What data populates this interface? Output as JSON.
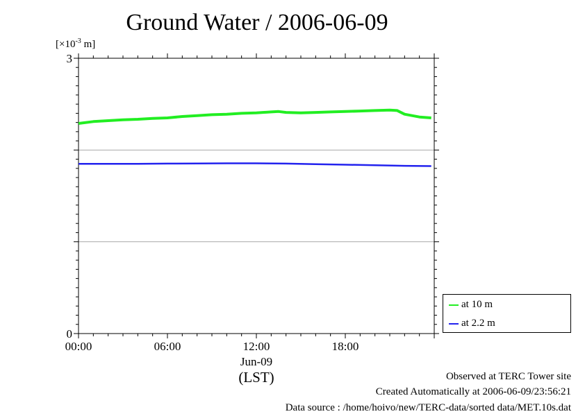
{
  "chart_data": {
    "type": "line",
    "title": "Ground Water / 2006-06-09",
    "ylabel_unit": "[×10",
    "ylabel_exp": "-3",
    "ylabel_tail": " m]",
    "ylim": [
      0,
      3
    ],
    "yticks": [
      0,
      3
    ],
    "ygrid": [
      1,
      2
    ],
    "xlim": [
      0,
      24
    ],
    "xticks": [
      {
        "x": 0,
        "label": "00:00"
      },
      {
        "x": 6,
        "label": "06:00"
      },
      {
        "x": 12,
        "label": "12:00"
      },
      {
        "x": 18,
        "label": "18:00"
      }
    ],
    "xsub_label": "Jun-09",
    "xaxis_label": "(LST)",
    "series": [
      {
        "name": "at 10 m",
        "color": "#22ee22",
        "x": [
          0,
          1,
          2,
          3,
          4,
          5,
          6,
          7,
          8,
          9,
          10,
          11,
          12,
          13,
          13.5,
          14,
          15,
          16,
          17,
          18,
          19,
          20,
          21,
          21.5,
          22,
          23,
          23.8
        ],
        "y": [
          2.29,
          2.31,
          2.32,
          2.33,
          2.335,
          2.345,
          2.35,
          2.365,
          2.375,
          2.385,
          2.39,
          2.4,
          2.405,
          2.415,
          2.42,
          2.41,
          2.405,
          2.41,
          2.415,
          2.42,
          2.425,
          2.43,
          2.435,
          2.43,
          2.39,
          2.36,
          2.35
        ]
      },
      {
        "name": "at 2.2 m",
        "color": "#2222ee",
        "x": [
          0,
          2,
          4,
          6,
          8,
          10,
          12,
          14,
          16,
          18,
          20,
          22,
          23.8
        ],
        "y": [
          1.85,
          1.85,
          1.85,
          1.852,
          1.853,
          1.855,
          1.855,
          1.852,
          1.845,
          1.84,
          1.835,
          1.828,
          1.825
        ]
      }
    ]
  },
  "footer": {
    "line1": "Observed at TERC Tower site",
    "line2": "Created Automatically at 2006-06-09/23:56:21",
    "line3": "Data source : /home/hoivo/new/TERC-data/sorted  data/MET.10s.dat"
  }
}
